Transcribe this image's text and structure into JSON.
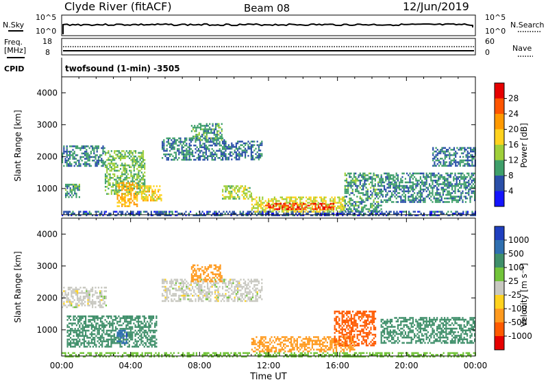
{
  "header": {
    "station": "Clyde River (fitACF)",
    "beam": "Beam 08",
    "date": "12/Jun/2019"
  },
  "top_panels": {
    "nsky_label": "N.Sky",
    "nsky_ticks": [
      "10^5",
      "10^0"
    ],
    "nsearch_label": "N.Search",
    "nsearch_ticks": [
      "10^5",
      "10^0"
    ],
    "freq_label": "Freq.",
    "freq_unit": "[MHz]",
    "freq_ticks": [
      "18",
      "8"
    ],
    "nave_label": "Nave",
    "nave_ticks": [
      "60",
      "0"
    ],
    "cpid_label": "CPID",
    "cpid_value": "twofsound (1-min) -3505"
  },
  "time_axis": {
    "ticks": [
      "00:00",
      "04:00",
      "08:00",
      "12:00",
      "16:00",
      "20:00",
      "00:00"
    ],
    "label": "Time UT"
  },
  "power_colorbar": {
    "label": "Power [dB]",
    "ticks": [
      "28",
      "24",
      "20",
      "16",
      "12",
      "8",
      "4"
    ],
    "colors": [
      "#e60000",
      "#ff5500",
      "#ff9900",
      "#ffd21e",
      "#9fcf3a",
      "#3f9f6a",
      "#2a4fa8",
      "#1414ff"
    ]
  },
  "velocity_colorbar": {
    "label": "Velocity [m s⁻¹]",
    "ticks": [
      "1000",
      "500",
      "100",
      "25",
      "-25",
      "-100",
      "-500",
      "-1000"
    ],
    "colors": [
      "#1f3fbf",
      "#2f6fb0",
      "#3f8f6a",
      "#72c43a",
      "#c8c8c0",
      "#ffd21e",
      "#ff9a1e",
      "#ff5a00",
      "#e60000"
    ]
  },
  "chart_data": [
    {
      "type": "heatmap",
      "title": "Power",
      "xlabel": "Time UT",
      "ylabel": "Slant Range [km]",
      "xlim": [
        0,
        24
      ],
      "ylim": [
        180,
        4500
      ],
      "yticks": [
        1000,
        2000,
        3000,
        4000
      ],
      "colorbar": "Power [dB]",
      "regions": [
        {
          "t0": 0.0,
          "t1": 24.0,
          "r0": 180,
          "r1": 300,
          "value": 6
        },
        {
          "t0": 0.0,
          "t1": 2.5,
          "r0": 1700,
          "r1": 2350,
          "value": 8
        },
        {
          "t0": 0.2,
          "t1": 1.0,
          "r0": 750,
          "r1": 1150,
          "value": 10
        },
        {
          "t0": 2.5,
          "t1": 4.8,
          "r0": 850,
          "r1": 2200,
          "value": 12
        },
        {
          "t0": 3.2,
          "t1": 4.4,
          "r0": 450,
          "r1": 1200,
          "value": 20
        },
        {
          "t0": 4.6,
          "t1": 5.8,
          "r0": 600,
          "r1": 1100,
          "value": 18
        },
        {
          "t0": 5.8,
          "t1": 9.5,
          "r0": 1900,
          "r1": 2600,
          "value": 8
        },
        {
          "t0": 7.5,
          "t1": 9.3,
          "r0": 2500,
          "r1": 3050,
          "value": 10
        },
        {
          "t0": 9.3,
          "t1": 11.6,
          "r0": 1900,
          "r1": 2500,
          "value": 8
        },
        {
          "t0": 9.3,
          "t1": 11.0,
          "r0": 700,
          "r1": 1100,
          "value": 14
        },
        {
          "t0": 11.0,
          "t1": 16.4,
          "r0": 300,
          "r1": 750,
          "value": 16
        },
        {
          "t0": 11.8,
          "t1": 15.8,
          "r0": 350,
          "r1": 550,
          "value": 27
        },
        {
          "t0": 16.4,
          "t1": 18.5,
          "r0": 300,
          "r1": 1500,
          "value": 10
        },
        {
          "t0": 18.5,
          "t1": 24.0,
          "r0": 600,
          "r1": 1500,
          "value": 9
        },
        {
          "t0": 21.5,
          "t1": 24.0,
          "r0": 1700,
          "r1": 2300,
          "value": 8
        }
      ]
    },
    {
      "type": "heatmap",
      "title": "Velocity",
      "xlabel": "Time UT",
      "ylabel": "Slant Range [km]",
      "xlim": [
        0,
        24
      ],
      "ylim": [
        180,
        4500
      ],
      "yticks": [
        1000,
        2000,
        3000,
        4000
      ],
      "colorbar": "Velocity [m s-1]",
      "regions": [
        {
          "t0": 0.0,
          "t1": 24.0,
          "r0": 180,
          "r1": 300,
          "value": 60
        },
        {
          "t0": 0.0,
          "t1": 2.6,
          "r0": 1700,
          "r1": 2350,
          "value": 0
        },
        {
          "t0": 0.3,
          "t1": 5.5,
          "r0": 500,
          "r1": 1450,
          "value": 300
        },
        {
          "t0": 3.2,
          "t1": 3.8,
          "r0": 600,
          "r1": 1000,
          "value": 800
        },
        {
          "t0": 5.8,
          "t1": 11.6,
          "r0": 1900,
          "r1": 2600,
          "value": 0
        },
        {
          "t0": 7.5,
          "t1": 9.3,
          "r0": 2500,
          "r1": 3050,
          "value": -200
        },
        {
          "t0": 11.0,
          "t1": 17.0,
          "r0": 300,
          "r1": 800,
          "value": -300
        },
        {
          "t0": 15.8,
          "t1": 18.2,
          "r0": 500,
          "r1": 1600,
          "value": -700
        },
        {
          "t0": 18.5,
          "t1": 24.0,
          "r0": 600,
          "r1": 1400,
          "value": 250
        }
      ]
    }
  ]
}
